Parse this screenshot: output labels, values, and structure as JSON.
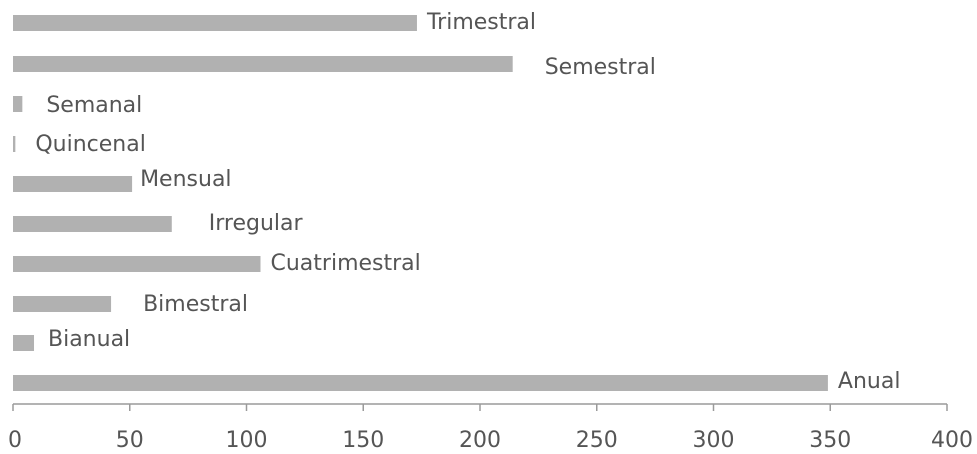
{
  "chart_data": {
    "type": "bar",
    "orientation": "horizontal",
    "categories": [
      "Trimestral",
      "Semestral",
      "Semanal",
      "Quincenal",
      "Mensual",
      "Irregular",
      "Cuatrimestral",
      "Bimestral",
      "Bianual",
      "Anual"
    ],
    "values": [
      173,
      214,
      4,
      1,
      51,
      68,
      106,
      42,
      9,
      349
    ],
    "xlim": [
      0,
      400
    ],
    "xticks": [
      "0",
      "50",
      "100",
      "150",
      "200",
      "250",
      "300",
      "350",
      "400"
    ],
    "bar_color": "#b1b1b1",
    "grid": false,
    "legend": "none"
  }
}
